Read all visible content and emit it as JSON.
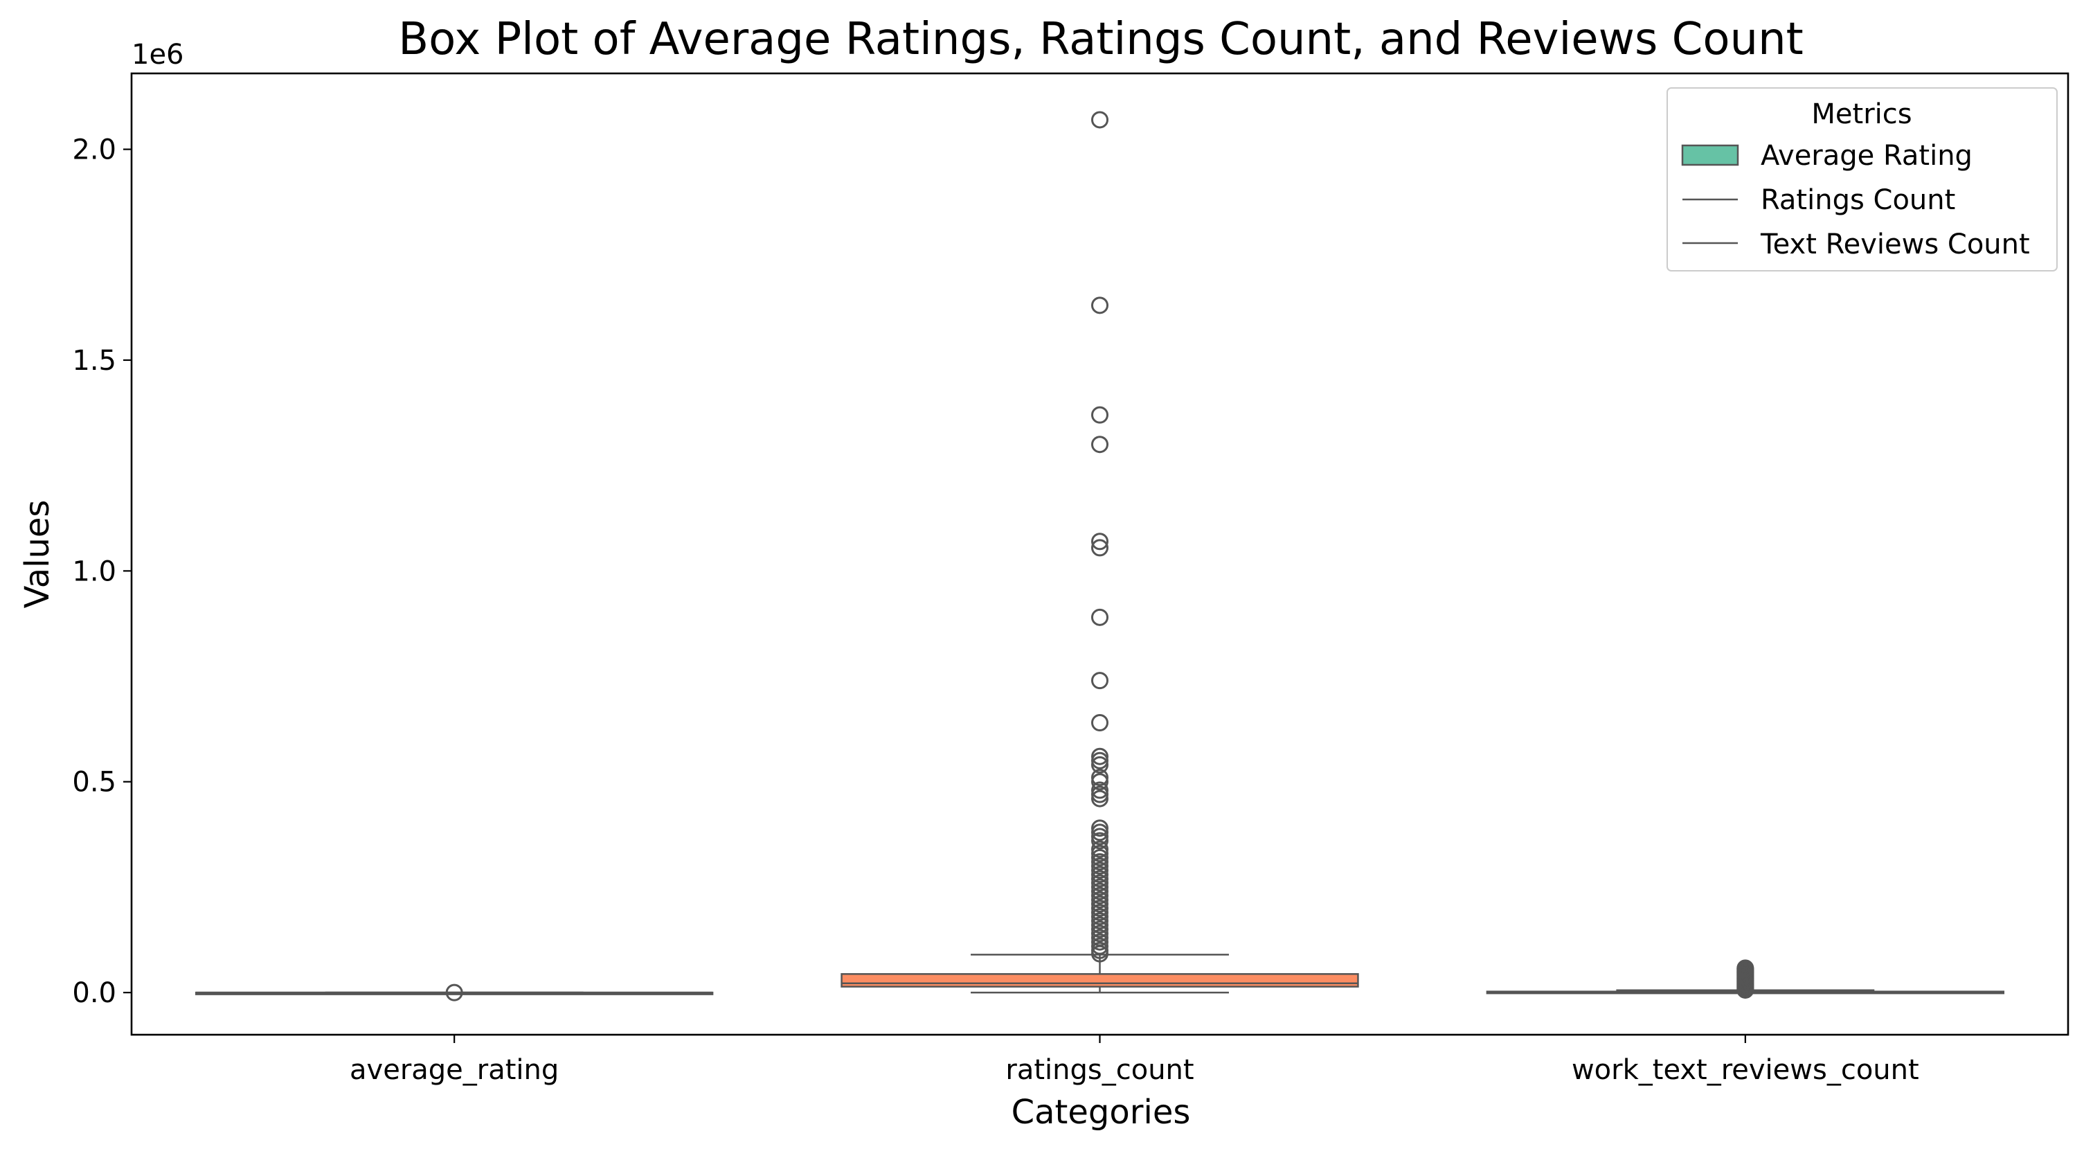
{
  "chart_data": {
    "type": "box",
    "title": "Box Plot of Average Ratings, Ratings Count, and Reviews Count",
    "xlabel": "Categories",
    "ylabel": "Values",
    "y_offset_label": "1e6",
    "ylim": [
      -0.1,
      2.18
    ],
    "y_ticks": [
      0.0,
      0.5,
      1.0,
      1.5,
      2.0
    ],
    "y_tick_labels": [
      "0.0",
      "0.5",
      "1.0",
      "1.5",
      "2.0"
    ],
    "y_scale_note": "values in millions (1e6)",
    "categories": [
      "average_rating",
      "ratings_count",
      "work_text_reviews_count"
    ],
    "boxes": [
      {
        "category": "average_rating",
        "color": "#66c2a5",
        "q1": 3.8e-06,
        "median": 4e-06,
        "q3": 4.2e-06,
        "whisker_low": 3.5e-06,
        "whisker_high": 4.5e-06,
        "outliers": [
          0.0
        ]
      },
      {
        "category": "ratings_count",
        "color": "#fc8d62",
        "q1": 0.014,
        "median": 0.022,
        "q3": 0.044,
        "whisker_low": 0.0,
        "whisker_high": 0.09,
        "outliers": [
          0.092,
          0.1,
          0.11,
          0.12,
          0.13,
          0.14,
          0.15,
          0.16,
          0.17,
          0.18,
          0.19,
          0.2,
          0.21,
          0.22,
          0.23,
          0.24,
          0.25,
          0.26,
          0.27,
          0.28,
          0.29,
          0.3,
          0.31,
          0.32,
          0.33,
          0.34,
          0.36,
          0.37,
          0.38,
          0.39,
          0.46,
          0.47,
          0.48,
          0.5,
          0.51,
          0.54,
          0.55,
          0.56,
          0.64,
          0.74,
          0.89,
          1.055,
          1.07,
          1.3,
          1.37,
          1.63,
          2.07
        ]
      },
      {
        "category": "work_text_reviews_count",
        "color": "#8da0cb",
        "q1": 0.0005,
        "median": 0.0012,
        "q3": 0.0024,
        "whisker_low": 0.0,
        "whisker_high": 0.0055,
        "outliers": [
          0.006,
          0.008,
          0.01,
          0.012,
          0.014,
          0.016,
          0.018,
          0.02,
          0.022,
          0.024,
          0.026,
          0.028,
          0.03,
          0.032,
          0.034,
          0.036,
          0.038,
          0.04,
          0.042,
          0.044,
          0.046,
          0.048,
          0.05,
          0.052,
          0.054,
          0.056,
          0.058
        ]
      }
    ],
    "legend": {
      "title": "Metrics",
      "placement": "top-right",
      "entries": [
        {
          "label": "Average Rating",
          "kind": "patch",
          "color": "#66c2a5"
        },
        {
          "label": "Ratings Count",
          "kind": "line",
          "color": "#555555"
        },
        {
          "label": "Text Reviews Count",
          "kind": "line",
          "color": "#555555"
        }
      ]
    },
    "grid": false,
    "colors": {
      "edge": "#555555",
      "axes": "#000000",
      "background": "#ffffff"
    }
  }
}
